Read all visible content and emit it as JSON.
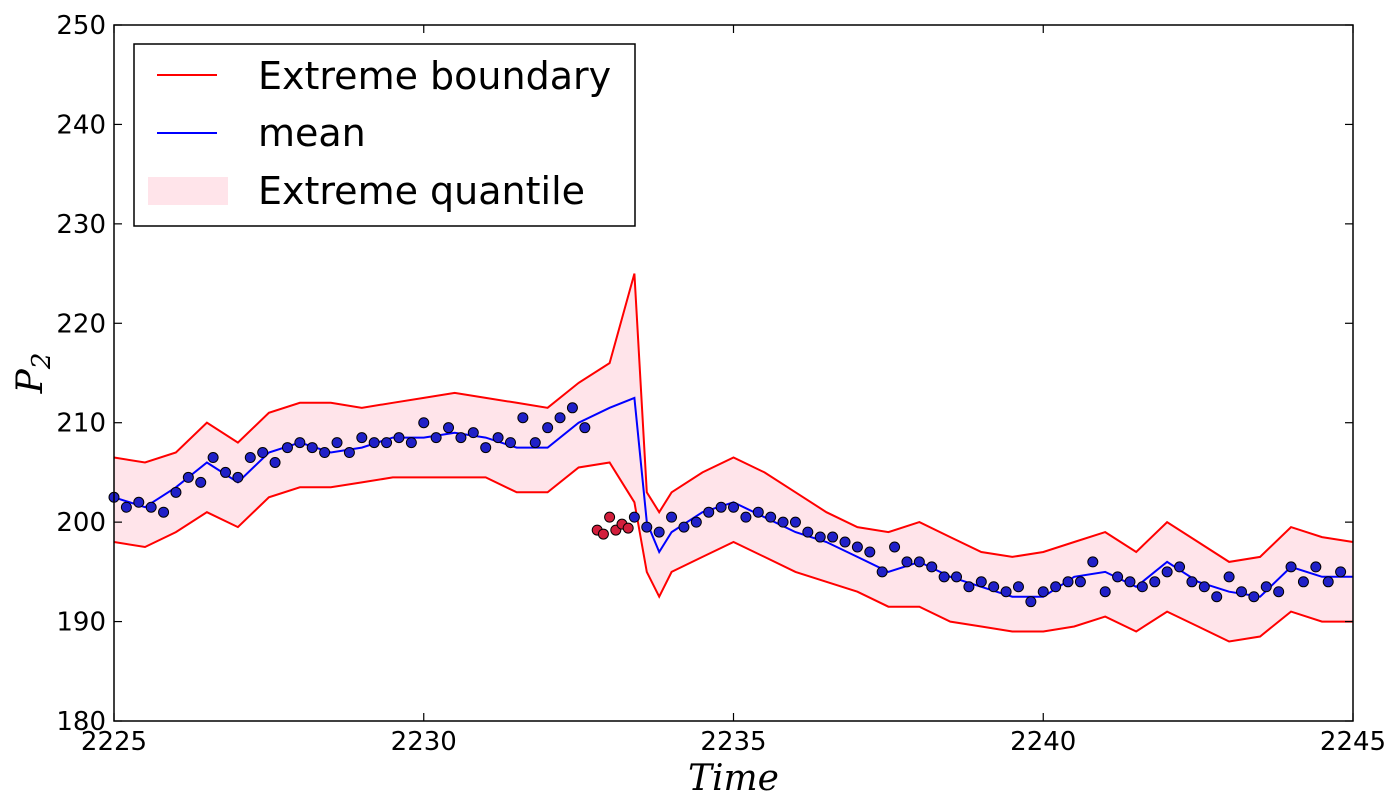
{
  "chart_data": {
    "type": "line",
    "xlabel": "Time",
    "ylabel": "P",
    "ylabel_subscript": "2",
    "xlim": [
      2225,
      2245
    ],
    "ylim": [
      180,
      250
    ],
    "xticks": [
      2225,
      2230,
      2235,
      2240,
      2245
    ],
    "yticks": [
      180,
      190,
      200,
      210,
      220,
      230,
      240,
      250
    ],
    "grid": false,
    "legend_position": "top-left",
    "legend": [
      "Extreme boundary",
      "mean",
      "Extreme quantile"
    ],
    "colors": {
      "boundary": "#ff0000",
      "mean": "#0000ff",
      "band": "#ffe4ea",
      "points_normal": "#2020c8",
      "points_anomaly": "#d21e3c"
    },
    "upper_boundary": {
      "x": [
        2225,
        2225.5,
        2226,
        2226.5,
        2227,
        2227.5,
        2228,
        2228.5,
        2229,
        2229.5,
        2230,
        2230.5,
        2231,
        2231.5,
        2232,
        2232.5,
        2233,
        2233.4,
        2233.6,
        2233.8,
        2234,
        2234.5,
        2235,
        2235.5,
        2236,
        2236.5,
        2237,
        2237.5,
        2238,
        2238.5,
        2239,
        2239.5,
        2240,
        2240.5,
        2241,
        2241.5,
        2242,
        2242.5,
        2243,
        2243.5,
        2244,
        2244.5,
        2245
      ],
      "y": [
        206.5,
        206,
        207,
        210,
        208,
        211,
        212,
        212,
        211.5,
        212,
        212.5,
        213,
        212.5,
        212,
        211.5,
        214,
        216,
        225,
        203,
        201,
        203,
        205,
        206.5,
        205,
        203,
        201,
        199.5,
        199,
        200,
        198.5,
        197,
        196.5,
        197,
        198,
        199,
        197,
        200,
        198,
        196,
        196.5,
        199.5,
        198.5,
        198
      ]
    },
    "lower_boundary": {
      "x": [
        2225,
        2225.5,
        2226,
        2226.5,
        2227,
        2227.5,
        2228,
        2228.5,
        2229,
        2229.5,
        2230,
        2230.5,
        2231,
        2231.5,
        2232,
        2232.5,
        2233,
        2233.4,
        2233.6,
        2233.8,
        2234,
        2234.5,
        2235,
        2235.5,
        2236,
        2236.5,
        2237,
        2237.5,
        2238,
        2238.5,
        2239,
        2239.5,
        2240,
        2240.5,
        2241,
        2241.5,
        2242,
        2242.5,
        2243,
        2243.5,
        2244,
        2244.5,
        2245
      ],
      "y": [
        198,
        197.5,
        199,
        201,
        199.5,
        202.5,
        203.5,
        203.5,
        204,
        204.5,
        204.5,
        204.5,
        204.5,
        203,
        203,
        205.5,
        206,
        202,
        195,
        192.5,
        195,
        196.5,
        198,
        196.5,
        195,
        194,
        193,
        191.5,
        191.5,
        190,
        189.5,
        189,
        189,
        189.5,
        190.5,
        189,
        191,
        189.5,
        188,
        188.5,
        191,
        190,
        190
      ]
    },
    "mean": {
      "x": [
        2225,
        2225.5,
        2226,
        2226.5,
        2227,
        2227.5,
        2228,
        2228.5,
        2229,
        2229.5,
        2230,
        2230.5,
        2231,
        2231.5,
        2232,
        2232.5,
        2233,
        2233.4,
        2233.6,
        2233.8,
        2234,
        2234.5,
        2235,
        2235.5,
        2236,
        2236.5,
        2237,
        2237.5,
        2238,
        2238.5,
        2239,
        2239.5,
        2240,
        2240.5,
        2241,
        2241.5,
        2242,
        2242.5,
        2243,
        2243.5,
        2244,
        2244.5,
        2245
      ],
      "y": [
        202.5,
        201.5,
        203.5,
        206,
        204,
        207,
        208,
        207,
        207.5,
        208.5,
        208.5,
        209,
        208.5,
        207.5,
        207.5,
        210,
        211.5,
        212.5,
        200,
        197,
        199,
        201,
        202,
        200.5,
        199,
        198,
        196.5,
        195,
        196,
        194.5,
        193.5,
        192.5,
        192.5,
        194.5,
        195,
        193.5,
        196,
        194,
        193,
        192.5,
        195.5,
        194.5,
        194.5
      ]
    },
    "points_normal": {
      "x": [
        2225,
        2225.2,
        2225.4,
        2225.6,
        2225.8,
        2226,
        2226.2,
        2226.4,
        2226.6,
        2226.8,
        2227,
        2227.2,
        2227.4,
        2227.6,
        2227.8,
        2228,
        2228.2,
        2228.4,
        2228.6,
        2228.8,
        2229,
        2229.2,
        2229.4,
        2229.6,
        2229.8,
        2230,
        2230.2,
        2230.4,
        2230.6,
        2230.8,
        2231,
        2231.2,
        2231.4,
        2231.6,
        2231.8,
        2232,
        2232.2,
        2232.4,
        2232.6,
        2233.4,
        2233.6,
        2233.8,
        2234,
        2234.2,
        2234.4,
        2234.6,
        2234.8,
        2235,
        2235.2,
        2235.4,
        2235.6,
        2235.8,
        2236,
        2236.2,
        2236.4,
        2236.6,
        2236.8,
        2237,
        2237.2,
        2237.4,
        2237.6,
        2237.8,
        2238,
        2238.2,
        2238.4,
        2238.6,
        2238.8,
        2239,
        2239.2,
        2239.4,
        2239.6,
        2239.8,
        2240,
        2240.2,
        2240.4,
        2240.6,
        2240.8,
        2241,
        2241.2,
        2241.4,
        2241.6,
        2241.8,
        2242,
        2242.2,
        2242.4,
        2242.6,
        2242.8,
        2243,
        2243.2,
        2243.4,
        2243.6,
        2243.8,
        2244,
        2244.2,
        2244.4,
        2244.6,
        2244.8
      ],
      "y": [
        202.5,
        201.5,
        202,
        201.5,
        201,
        203,
        204.5,
        204,
        206.5,
        205,
        204.5,
        206.5,
        207,
        206,
        207.5,
        208,
        207.5,
        207,
        208,
        207,
        208.5,
        208,
        208,
        208.5,
        208,
        210,
        208.5,
        209.5,
        208.5,
        209,
        207.5,
        208.5,
        208,
        210.5,
        208,
        209.5,
        210.5,
        211.5,
        209.5,
        200.5,
        199.5,
        199,
        200.5,
        199.5,
        200,
        201,
        201.5,
        201.5,
        200.5,
        201,
        200.5,
        200,
        200,
        199,
        198.5,
        198.5,
        198,
        197.5,
        197,
        195,
        197.5,
        196,
        196,
        195.5,
        194.5,
        194.5,
        193.5,
        194,
        193.5,
        193,
        193.5,
        192,
        193,
        193.5,
        194,
        194,
        196,
        193,
        194.5,
        194,
        193.5,
        194,
        195,
        195.5,
        194,
        193.5,
        192.5,
        194.5,
        193,
        192.5,
        193.5,
        193,
        195.5,
        194,
        195.5,
        194,
        195
      ]
    },
    "points_anomaly": {
      "x": [
        2232.8,
        2232.9,
        2233,
        2233.1,
        2233.2,
        2233.3
      ],
      "y": [
        199.2,
        198.8,
        200.5,
        199.2,
        199.8,
        199.4
      ]
    }
  }
}
